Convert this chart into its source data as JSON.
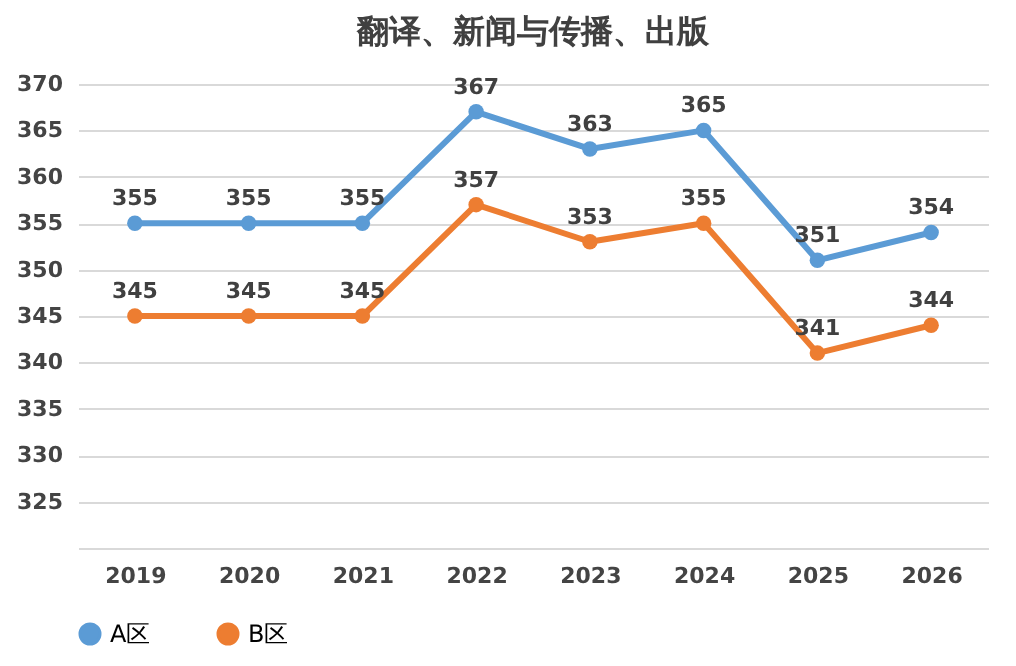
{
  "chart_data": {
    "type": "line",
    "title": "翻译、新闻与传播、出版",
    "categories": [
      "2019",
      "2020",
      "2021",
      "2022",
      "2023",
      "2024",
      "2025",
      "2026"
    ],
    "series": [
      {
        "name": "A区",
        "color": "#5b9bd5",
        "values": [
          355,
          355,
          355,
          367,
          363,
          365,
          351,
          354
        ]
      },
      {
        "name": "B区",
        "color": "#ed7d31",
        "values": [
          345,
          345,
          345,
          357,
          353,
          355,
          341,
          344
        ]
      }
    ],
    "ylim": [
      320,
      370
    ],
    "yticks": [
      325,
      330,
      335,
      340,
      345,
      350,
      355,
      360,
      365,
      370
    ],
    "grid": "y",
    "legend": "bottom",
    "marker": "circle",
    "line_style": "solid",
    "data_labels": true
  }
}
